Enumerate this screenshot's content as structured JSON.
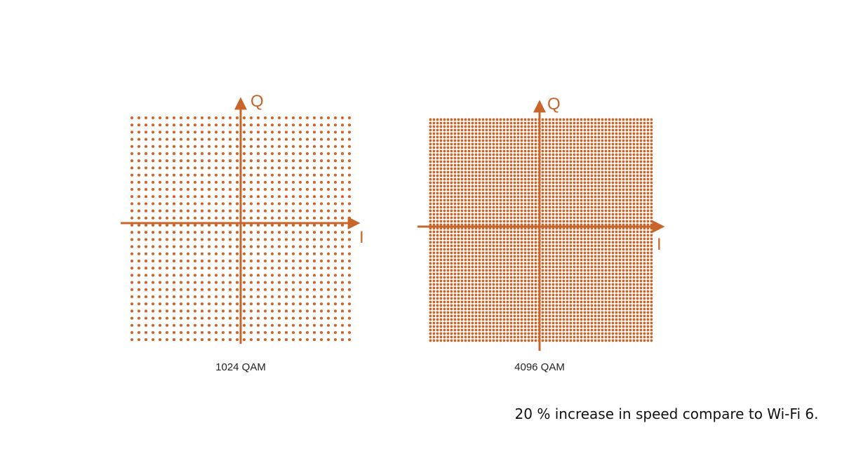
{
  "diagrams": [
    {
      "axis_q": "Q",
      "axis_i": "I",
      "caption": "1024 QAM"
    },
    {
      "axis_q": "Q",
      "axis_i": "I",
      "caption": "4096 QAM"
    }
  ],
  "note": "20 % increase in speed compare to Wi-Fi 6."
}
